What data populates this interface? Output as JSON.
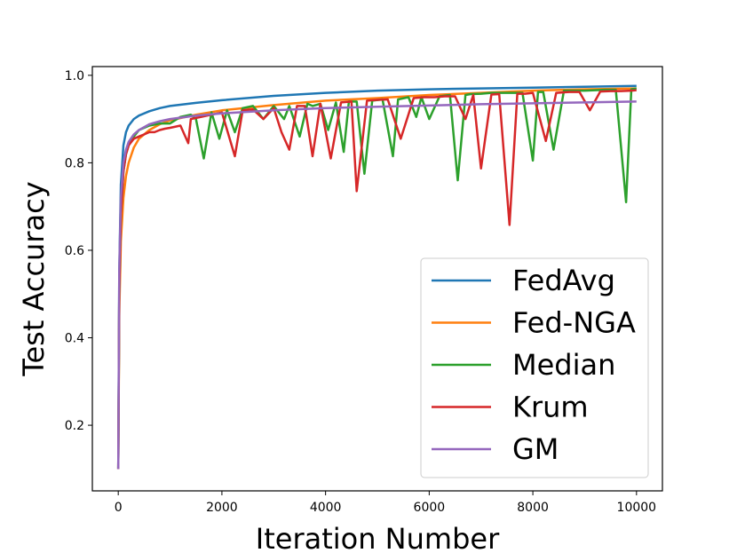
{
  "chart_data": {
    "type": "line",
    "xlabel": "Iteration Number",
    "ylabel": "Test Accuracy",
    "xlim": [
      -500,
      10500
    ],
    "ylim": [
      0.05,
      1.02
    ],
    "xticks": [
      0,
      2000,
      4000,
      6000,
      8000,
      10000
    ],
    "xtick_labels": [
      "0",
      "2000",
      "4000",
      "6000",
      "8000",
      "10000"
    ],
    "yticks": [
      0.2,
      0.4,
      0.6,
      0.8,
      1.0
    ],
    "ytick_labels": [
      "0.2",
      "0.4",
      "0.6",
      "0.8",
      "1.0"
    ],
    "grid": false,
    "legend_position": "lower-right",
    "series": [
      {
        "name": "FedAvg",
        "color": "#1f77b4",
        "x": [
          0,
          20,
          50,
          100,
          150,
          200,
          300,
          400,
          600,
          800,
          1000,
          1500,
          2000,
          3000,
          4000,
          5000,
          6000,
          7000,
          8000,
          9000,
          10000
        ],
        "y": [
          0.1,
          0.55,
          0.75,
          0.84,
          0.87,
          0.885,
          0.9,
          0.908,
          0.918,
          0.925,
          0.93,
          0.937,
          0.943,
          0.953,
          0.96,
          0.965,
          0.968,
          0.97,
          0.972,
          0.974,
          0.976
        ]
      },
      {
        "name": "Fed-NGA",
        "color": "#ff7f0e",
        "x": [
          0,
          20,
          50,
          100,
          150,
          200,
          300,
          400,
          600,
          800,
          1000,
          1500,
          2000,
          3000,
          4000,
          5000,
          6000,
          7000,
          8000,
          9000,
          10000
        ],
        "y": [
          0.1,
          0.45,
          0.62,
          0.72,
          0.77,
          0.8,
          0.835,
          0.855,
          0.875,
          0.888,
          0.897,
          0.91,
          0.92,
          0.932,
          0.942,
          0.948,
          0.955,
          0.96,
          0.965,
          0.968,
          0.97
        ]
      },
      {
        "name": "Median",
        "color": "#2ca02c",
        "x": [
          0,
          20,
          50,
          100,
          150,
          200,
          300,
          400,
          600,
          800,
          1000,
          1200,
          1400,
          1500,
          1650,
          1800,
          1950,
          2100,
          2250,
          2400,
          2600,
          2800,
          3000,
          3200,
          3300,
          3500,
          3650,
          3750,
          3900,
          4050,
          4200,
          4350,
          4450,
          4600,
          4750,
          4900,
          5100,
          5300,
          5400,
          5600,
          5750,
          5850,
          6000,
          6200,
          6400,
          6550,
          6700,
          6800,
          7000,
          7200,
          7400,
          7600,
          7800,
          8000,
          8100,
          8200,
          8400,
          8600,
          8800,
          9000,
          9200,
          9400,
          9600,
          9800,
          9900,
          10000
        ],
        "y": [
          0.1,
          0.5,
          0.68,
          0.78,
          0.82,
          0.84,
          0.86,
          0.875,
          0.885,
          0.89,
          0.89,
          0.905,
          0.91,
          0.9,
          0.81,
          0.915,
          0.855,
          0.92,
          0.87,
          0.925,
          0.93,
          0.9,
          0.93,
          0.9,
          0.93,
          0.86,
          0.935,
          0.93,
          0.935,
          0.875,
          0.938,
          0.825,
          0.94,
          0.94,
          0.775,
          0.942,
          0.945,
          0.815,
          0.945,
          0.95,
          0.905,
          0.95,
          0.9,
          0.952,
          0.955,
          0.76,
          0.955,
          0.957,
          0.958,
          0.96,
          0.96,
          0.96,
          0.96,
          0.805,
          0.962,
          0.962,
          0.83,
          0.965,
          0.965,
          0.965,
          0.966,
          0.967,
          0.967,
          0.71,
          0.968,
          0.97
        ]
      },
      {
        "name": "Krum",
        "color": "#d62728",
        "x": [
          0,
          20,
          50,
          100,
          150,
          200,
          300,
          400,
          500,
          600,
          700,
          800,
          900,
          1000,
          1200,
          1350,
          1400,
          1600,
          1800,
          2000,
          2250,
          2400,
          2600,
          2800,
          3000,
          3150,
          3300,
          3450,
          3600,
          3750,
          3900,
          4100,
          4300,
          4500,
          4600,
          4800,
          5000,
          5200,
          5450,
          5700,
          5900,
          6100,
          6300,
          6500,
          6700,
          6850,
          7000,
          7200,
          7350,
          7550,
          7700,
          7850,
          8000,
          8250,
          8450,
          8700,
          8900,
          9100,
          9300,
          9500,
          9700,
          9900,
          10000
        ],
        "y": [
          0.1,
          0.5,
          0.68,
          0.78,
          0.82,
          0.84,
          0.855,
          0.86,
          0.865,
          0.87,
          0.87,
          0.875,
          0.878,
          0.88,
          0.885,
          0.845,
          0.9,
          0.905,
          0.91,
          0.915,
          0.815,
          0.92,
          0.922,
          0.9,
          0.925,
          0.87,
          0.83,
          0.93,
          0.93,
          0.815,
          0.935,
          0.81,
          0.938,
          0.94,
          0.735,
          0.942,
          0.944,
          0.945,
          0.855,
          0.948,
          0.95,
          0.95,
          0.952,
          0.952,
          0.9,
          0.955,
          0.787,
          0.956,
          0.957,
          0.658,
          0.958,
          0.958,
          0.96,
          0.85,
          0.96,
          0.962,
          0.962,
          0.92,
          0.963,
          0.964,
          0.964,
          0.965,
          0.966
        ]
      },
      {
        "name": "GM",
        "color": "#9467bd",
        "x": [
          0,
          20,
          50,
          100,
          150,
          200,
          300,
          400,
          600,
          800,
          1000,
          1500,
          2000,
          3000,
          4000,
          5000,
          6000,
          7000,
          8000,
          9000,
          10000
        ],
        "y": [
          0.1,
          0.55,
          0.72,
          0.8,
          0.83,
          0.848,
          0.865,
          0.875,
          0.888,
          0.895,
          0.9,
          0.908,
          0.913,
          0.92,
          0.925,
          0.928,
          0.931,
          0.934,
          0.936,
          0.938,
          0.94
        ]
      }
    ]
  }
}
